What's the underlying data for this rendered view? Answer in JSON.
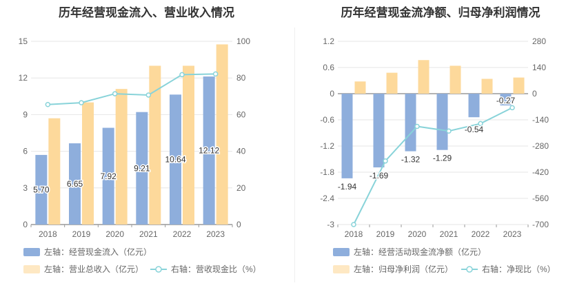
{
  "chart_data": [
    {
      "type": "bar",
      "title": "历年经营现金流入、营业收入情况",
      "categories": [
        "2018",
        "2019",
        "2020",
        "2021",
        "2022",
        "2023"
      ],
      "left_axis": {
        "min": 0,
        "max": 15,
        "ticks": [
          "0",
          "3",
          "6",
          "9",
          "12",
          "15"
        ]
      },
      "right_axis": {
        "min": 0,
        "max": 100,
        "ticks": [
          "0",
          "20",
          "40",
          "60",
          "80",
          "100"
        ]
      },
      "series": [
        {
          "name": "左轴：经营现金流入（亿元）",
          "type": "bar",
          "axis": "left",
          "color": "#8eaedc",
          "values": [
            5.7,
            6.65,
            7.92,
            9.21,
            10.64,
            12.12
          ],
          "labels": [
            "5.70",
            "6.65",
            "7.92",
            "9.21",
            "10.64",
            "12.12"
          ]
        },
        {
          "name": "左轴：营业总收入（亿元）",
          "type": "bar",
          "axis": "left",
          "color": "#fdd99b",
          "values": [
            8.7,
            10.0,
            11.1,
            13.0,
            13.0,
            14.75
          ]
        },
        {
          "name": "右轴：营收现金比（%）",
          "type": "line",
          "axis": "right",
          "color": "#88d3d9",
          "values": [
            65.5,
            66.5,
            71.4,
            70.7,
            81.8,
            82.2
          ]
        }
      ],
      "grid": true,
      "legend": "bottom"
    },
    {
      "type": "bar",
      "title": "历年经营现金流净额、归母净利润情况",
      "categories": [
        "2018",
        "2019",
        "2020",
        "2021",
        "2022",
        "2023"
      ],
      "left_axis": {
        "min": -3,
        "max": 1.2,
        "ticks": [
          "-3",
          "-2.4",
          "-1.8",
          "-1.2",
          "-0.6",
          "0",
          "0.6",
          "1.2"
        ]
      },
      "right_axis": {
        "min": -700,
        "max": 280,
        "ticks": [
          "-700",
          "-560",
          "-420",
          "-280",
          "-140",
          "0",
          "140",
          "280"
        ]
      },
      "series": [
        {
          "name": "左轴：经营活动现金流净额（亿元）",
          "type": "bar",
          "axis": "left",
          "color": "#8eaedc",
          "values": [
            -1.94,
            -1.69,
            -1.32,
            -1.29,
            -0.54,
            -0.27
          ],
          "labels": [
            "-1.94",
            "-1.69",
            "-1.32",
            "-1.29",
            "-0.54",
            "-0.27"
          ]
        },
        {
          "name": "左轴：归母净利润（亿元）",
          "type": "bar",
          "axis": "left",
          "color": "#fdd99b",
          "values": [
            0.28,
            0.48,
            0.77,
            0.64,
            0.34,
            0.37
          ]
        },
        {
          "name": "右轴：净现比（%）",
          "type": "line",
          "axis": "right",
          "color": "#88d3d9",
          "values": [
            -700,
            -360,
            -175,
            -200,
            -160,
            -75
          ]
        }
      ],
      "grid": true,
      "legend": "bottom"
    }
  ]
}
